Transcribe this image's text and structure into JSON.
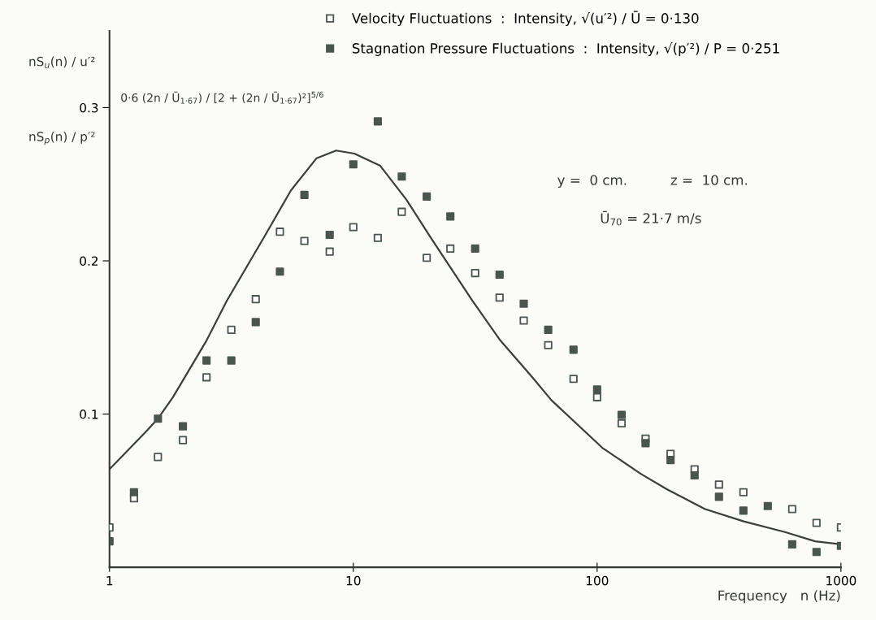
{
  "chart_data": {
    "type": "scatter",
    "xlabel": "Frequency   n (Hz)",
    "ylabel": "nS$_{u}$(n) / u′²",
    "annotations": [
      "nS$_{p}$(n) / p′²",
      "y =  0 cm.",
      "z =  10 cm.",
      "Ū$_{70}$ = 21·7 m/s"
    ],
    "log": "x",
    "xlim": [
      1,
      1000
    ],
    "ylim": [
      0,
      0.35
    ],
    "xticks": [
      1,
      10,
      100,
      1000
    ],
    "yticks": [
      0.1,
      0.2,
      0.3
    ],
    "grid": false,
    "legend": "top",
    "marker": "square",
    "x": [
      1,
      1.26,
      1.58,
      2,
      2.5,
      3.16,
      3.98,
      5.0,
      6.3,
      8,
      10,
      12.6,
      15.8,
      20,
      25,
      31.6,
      39.8,
      50,
      63,
      80,
      100,
      126,
      158,
      200,
      251,
      316,
      398,
      501,
      631,
      794,
      1000
    ],
    "series": [
      {
        "name": "Velocity Fluctuations  :  Intensity, √(u′²) / Ū = 0·130",
        "color": "#4a5550",
        "values": [
          0.026,
          0.045,
          0.072,
          0.083,
          0.124,
          0.155,
          0.175,
          0.219,
          0.213,
          0.206,
          0.222,
          0.215,
          0.232,
          0.202,
          0.208,
          0.192,
          0.176,
          0.161,
          0.145,
          0.123,
          0.111,
          0.094,
          0.084,
          0.074,
          0.064,
          0.054,
          0.049,
          null,
          0.038,
          0.029,
          0.026
        ]
      },
      {
        "name": "Stagnation Pressure Fluctuations  :  Intensity, √(p′²) / P = 0·251",
        "color": "#4a5550",
        "values": [
          0.017,
          0.049,
          0.097,
          0.092,
          0.135,
          0.135,
          0.16,
          0.193,
          0.243,
          0.217,
          0.263,
          0.291,
          0.255,
          0.242,
          0.229,
          0.208,
          0.191,
          0.172,
          0.155,
          0.142,
          0.116,
          0.0995,
          0.081,
          0.07,
          0.06,
          0.046,
          0.037,
          0.04,
          0.015,
          0.01,
          0.014
        ]
      },
      {
        "type": "line",
        "name": "0·6 (2n / Ū$_{1·67}$) / [2 + (2n / Ū$_{1·67}$)²]$^{5/6}$",
        "color": "#3a3f3c",
        "marker": "none",
        "line_style": "solid",
        "x": [
          1,
          1.4,
          1.58,
          1.82,
          2.5,
          3.03,
          4.36,
          5.55,
          7.07,
          8.5,
          10.1,
          12.9,
          16.5,
          21,
          30.8,
          40.1,
          53.6,
          65,
          105,
          151,
          193,
          277,
          399,
          589,
          783,
          1000
        ],
        "values": [
          0.064,
          0.088,
          0.097,
          0.111,
          0.148,
          0.174,
          0.217,
          0.246,
          0.267,
          0.272,
          0.27,
          0.262,
          0.24,
          0.214,
          0.174,
          0.148,
          0.125,
          0.109,
          0.078,
          0.061,
          0.051,
          0.038,
          0.03,
          0.023,
          0.017,
          0.015
        ]
      }
    ]
  }
}
